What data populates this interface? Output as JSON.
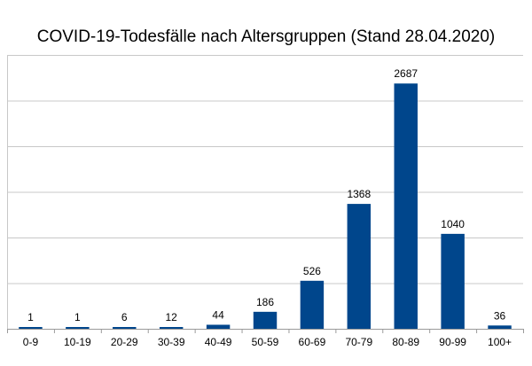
{
  "chart_data": {
    "type": "bar",
    "title": "COVID-19-Todesfälle nach Altersgruppen (Stand 28.04.2020)",
    "xlabel": "",
    "ylabel": "",
    "categories": [
      "0-9",
      "10-19",
      "20-29",
      "30-39",
      "40-49",
      "50-59",
      "60-69",
      "70-79",
      "80-89",
      "90-99",
      "100+"
    ],
    "values": [
      1,
      1,
      6,
      12,
      44,
      186,
      526,
      1368,
      2687,
      1040,
      36
    ],
    "data_labels": [
      "1",
      "1",
      "6",
      "12",
      "44",
      "186",
      "526",
      "1368",
      "2687",
      "1040",
      "36"
    ],
    "ylim": [
      0,
      3000
    ],
    "y_gridlines": [
      0,
      500,
      1000,
      1500,
      2000,
      2500,
      3000
    ],
    "grid": true,
    "y_tick_labels_shown": false,
    "legend": "none",
    "bar_color": "#00468C",
    "grid_color": "#C8C8C8"
  }
}
